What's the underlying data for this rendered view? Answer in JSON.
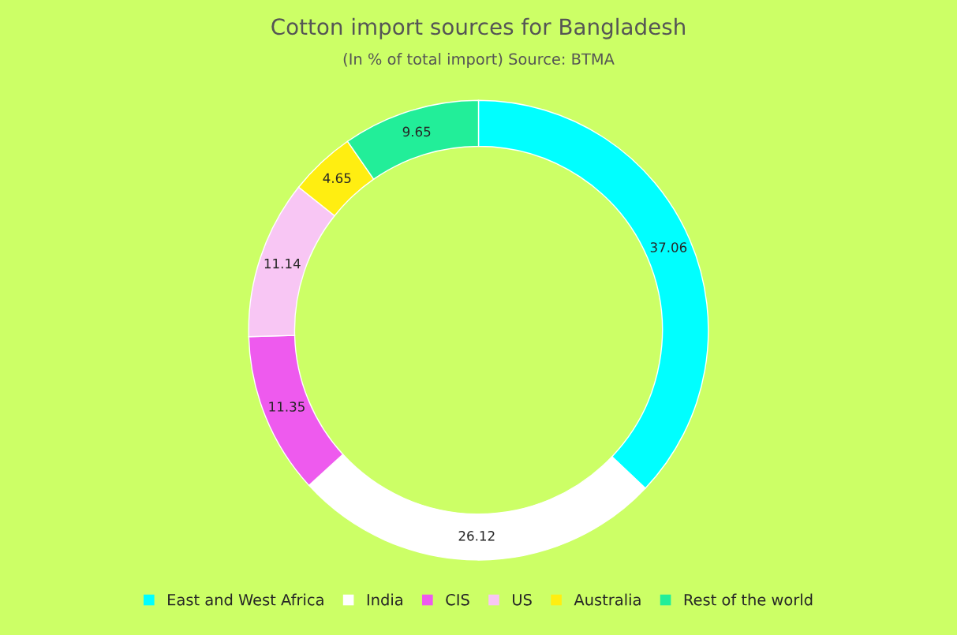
{
  "chart_data": {
    "type": "donut",
    "title": "Cotton import sources for Bangladesh",
    "subtitle": "(In % of total import) Source: BTMA",
    "categories": [
      "East and West Africa",
      "India",
      "CIS",
      "US",
      "Australia",
      "Rest of the world"
    ],
    "values": [
      37.06,
      26.12,
      11.35,
      11.14,
      4.65,
      9.65
    ],
    "colors": [
      "#00ffff",
      "#ffffff",
      "#ee5aee",
      "#f8c6f4",
      "#ffee11",
      "#22ee99"
    ],
    "data_labels": true,
    "legend": "bottom"
  }
}
